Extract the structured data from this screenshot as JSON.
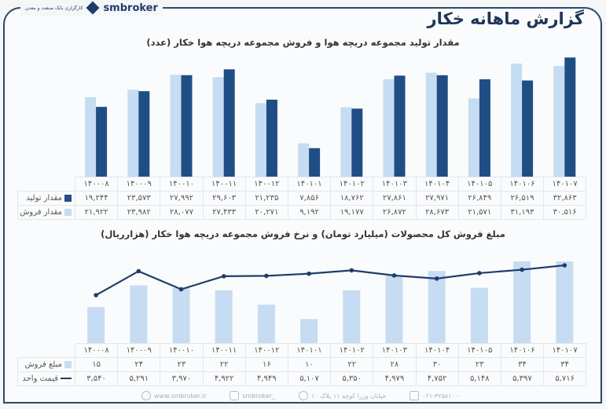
{
  "header": {
    "title": "گزارش ماهانه خکار",
    "brand": "smbroker",
    "bank_logo_text": "کارگزاری بانک صنعت و معدن"
  },
  "colors": {
    "production": "#1f4e85",
    "sales": "#c6dcf2",
    "line": "#1f3d6b",
    "frame": "#2c4a6b"
  },
  "chart_data": [
    {
      "type": "bar",
      "title": "مقدار تولید مجموعه دریچه هوا و فروش مجموعه دریچه هوا خکار (عدد)",
      "categories": [
        "۱۴۰۰۰۸",
        "۱۴۰۰۰۹",
        "۱۴۰۰۱۰",
        "۱۴۰۰۱۱",
        "۱۴۰۰۱۲",
        "۱۴۰۱۰۱",
        "۱۴۰۱۰۲",
        "۱۴۰۱۰۳",
        "۱۴۰۱۰۴",
        "۱۴۰۱۰۵",
        "۱۴۰۱۰۶",
        "۱۴۰۱۰۷"
      ],
      "series": [
        {
          "name": "مقدار تولید",
          "values": [
            19244,
            23573,
            27992,
            29603,
            21235,
            7856,
            18762,
            27861,
            27971,
            26849,
            26519,
            32863
          ]
        },
        {
          "name": "مقدار فروش",
          "values": [
            21922,
            23982,
            28077,
            27433,
            20271,
            9192,
            19177,
            26872,
            28673,
            21571,
            31193,
            30516
          ]
        }
      ],
      "ylim": [
        0,
        34000
      ],
      "grid": false,
      "legend": "table"
    },
    {
      "type": "bar+line",
      "title": "مبلغ فروش کل محصولات (میلیارد تومان) و نرخ فروش مجموعه دریچه هوا خکار (هزارریال)",
      "categories": [
        "۱۴۰۰۰۸",
        "۱۴۰۰۰۹",
        "۱۴۰۰۱۰",
        "۱۴۰۰۱۱",
        "۱۴۰۰۱۲",
        "۱۴۰۱۰۱",
        "۱۴۰۱۰۲",
        "۱۴۰۱۰۳",
        "۱۴۰۱۰۴",
        "۱۴۰۱۰۵",
        "۱۴۰۱۰۶",
        "۱۴۰۱۰۷"
      ],
      "series": [
        {
          "name": "مبلغ فروش",
          "type": "bar",
          "values": [
            15,
            24,
            23,
            22,
            16,
            10,
            22,
            28,
            30,
            23,
            34,
            34
          ]
        },
        {
          "name": "قیمت واحد",
          "type": "line",
          "values": [
            3540,
            5291,
            3970,
            4922,
            4949,
            5107,
            5350,
            4979,
            4752,
            5148,
            5397,
            5716
          ]
        }
      ],
      "grid": false,
      "legend": "table"
    }
  ],
  "footer": {
    "website": "www.smbroker.ir",
    "instagram": "smbroker_",
    "address": "خیابان وزرا کوچه ۱۱ پلاک ۱۰",
    "phone": "۰۲۱-۴۲۵۸۱۰۰۰"
  }
}
